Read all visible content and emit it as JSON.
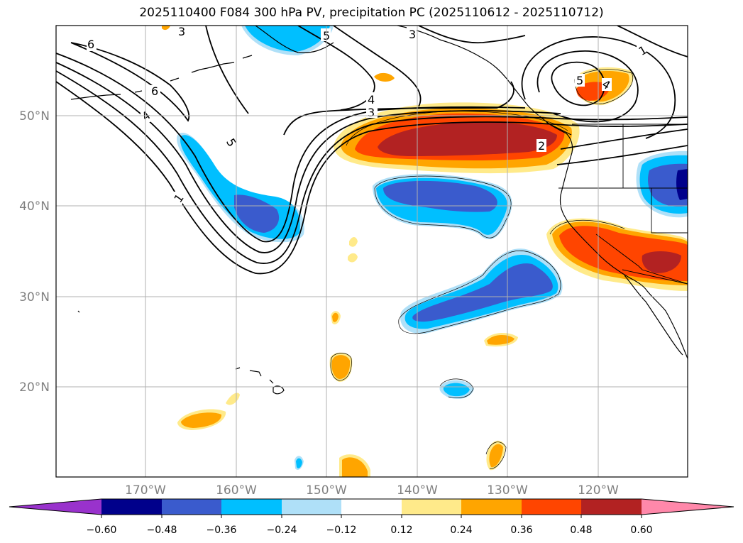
{
  "title": "2025110400 F084 300 hPa PV, precipitation PC (2025110612 - 2025110712)",
  "lat_labels": [
    "50°N",
    "40°N",
    "30°N",
    "20°N"
  ],
  "lon_labels": [
    "170°W",
    "160°W",
    "150°W",
    "140°W",
    "130°W",
    "120°W"
  ],
  "colorbar": {
    "ticks": [
      "−0.60",
      "−0.48",
      "−0.36",
      "−0.24",
      "−0.12",
      "0.12",
      "0.24",
      "0.36",
      "0.48",
      "0.60"
    ],
    "colors": [
      "#9932cc",
      "#00008b",
      "#3a5bcd",
      "#00bfff",
      "#afe0f8",
      "#ffffff",
      "#ffea8a",
      "#ffa500",
      "#ff4500",
      "#b22222",
      "#ff88aa"
    ]
  },
  "pv_contour_labels": [
    "3",
    "5",
    "3",
    "1",
    "6",
    "6",
    "4",
    "3",
    "5",
    "4",
    "4",
    "5",
    "1",
    "2"
  ]
}
